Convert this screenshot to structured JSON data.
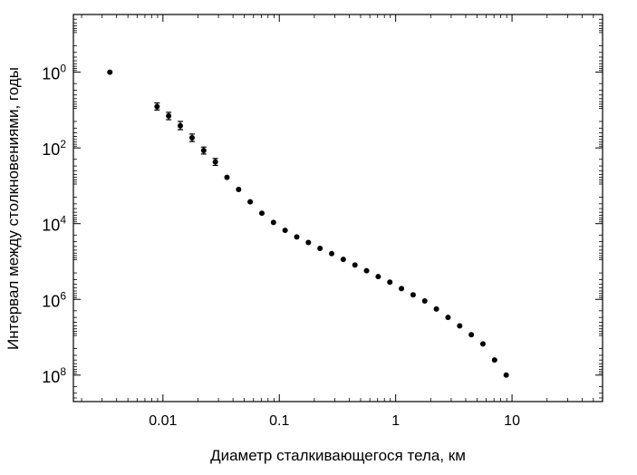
{
  "chart_data": {
    "type": "scatter",
    "xlabel": "Диаметр сталкивающегося тела, км",
    "ylabel": "Интервал между столкновениями, годы",
    "x_scale": "log",
    "y_scale": "log",
    "y_inverted": true,
    "xlim": [
      0.0017,
      60
    ],
    "ylim": [
      0.03,
      500000000
    ],
    "grid": false,
    "x_ticks": [
      {
        "value": 0.01,
        "label": "0.01"
      },
      {
        "value": 0.1,
        "label": "0.1"
      },
      {
        "value": 1,
        "label": "1"
      },
      {
        "value": 10,
        "label": "10"
      }
    ],
    "y_ticks": [
      {
        "value": 1,
        "base": "10",
        "exp": "0"
      },
      {
        "value": 100,
        "base": "10",
        "exp": "2"
      },
      {
        "value": 10000,
        "base": "10",
        "exp": "4"
      },
      {
        "value": 1000000,
        "base": "10",
        "exp": "6"
      },
      {
        "value": 100000000,
        "base": "10",
        "exp": "8"
      }
    ],
    "points": [
      {
        "x": 0.0035,
        "y": 1
      },
      {
        "x": 0.0089,
        "y": 8.1,
        "err_low": 6.5,
        "err_high": 10
      },
      {
        "x": 0.0112,
        "y": 14.3,
        "err_low": 11.5,
        "err_high": 18
      },
      {
        "x": 0.0141,
        "y": 26,
        "err_low": 20,
        "err_high": 33
      },
      {
        "x": 0.0178,
        "y": 54,
        "err_low": 43,
        "err_high": 68
      },
      {
        "x": 0.0224,
        "y": 117,
        "err_low": 95,
        "err_high": 145
      },
      {
        "x": 0.0282,
        "y": 235,
        "err_low": 190,
        "err_high": 290
      },
      {
        "x": 0.0355,
        "y": 600
      },
      {
        "x": 0.0447,
        "y": 1250
      },
      {
        "x": 0.0562,
        "y": 2650
      },
      {
        "x": 0.0708,
        "y": 5300
      },
      {
        "x": 0.0891,
        "y": 9300
      },
      {
        "x": 0.1122,
        "y": 15000
      },
      {
        "x": 0.1413,
        "y": 22500
      },
      {
        "x": 0.1778,
        "y": 31500
      },
      {
        "x": 0.2239,
        "y": 45000
      },
      {
        "x": 0.2818,
        "y": 62000
      },
      {
        "x": 0.3548,
        "y": 88000
      },
      {
        "x": 0.4467,
        "y": 124000
      },
      {
        "x": 0.5623,
        "y": 175000
      },
      {
        "x": 0.7079,
        "y": 250000
      },
      {
        "x": 0.8913,
        "y": 350000
      },
      {
        "x": 1.122,
        "y": 520000
      },
      {
        "x": 1.413,
        "y": 760000
      },
      {
        "x": 1.778,
        "y": 1100000
      },
      {
        "x": 2.239,
        "y": 1800000
      },
      {
        "x": 2.818,
        "y": 3000000
      },
      {
        "x": 3.548,
        "y": 5000000
      },
      {
        "x": 4.467,
        "y": 8600000
      },
      {
        "x": 5.623,
        "y": 15000000
      },
      {
        "x": 7.079,
        "y": 40000000
      },
      {
        "x": 8.913,
        "y": 100000000
      }
    ]
  }
}
